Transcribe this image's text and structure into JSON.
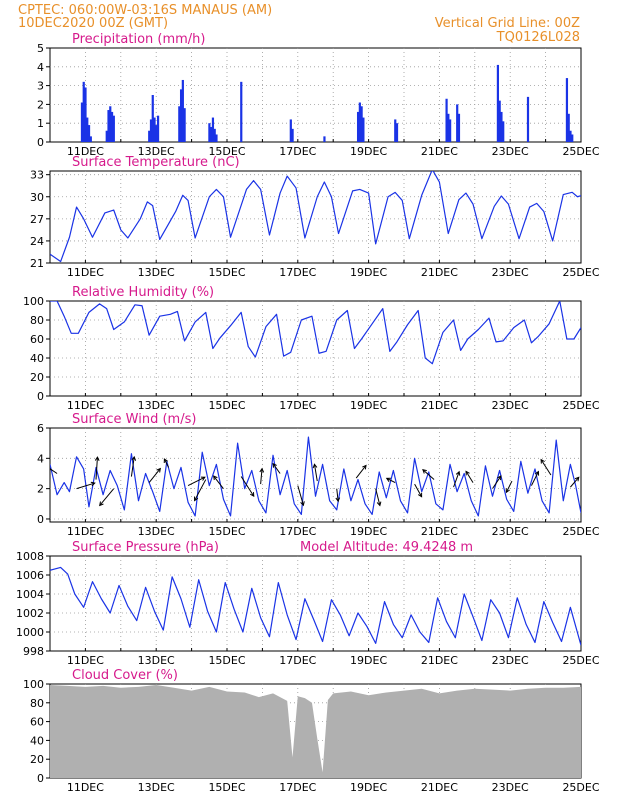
{
  "header": {
    "line1": "CPTEC:    060:00W-03:16S   MANAUS (AM)",
    "line2": "10DEC2020 00Z (GMT)",
    "grid_note": "Vertical Grid Line: 00Z",
    "code": "TQ0126L028"
  },
  "colors": {
    "header_text": "#e8902a",
    "panel_title": "#d61a8c",
    "series": "#1a33e6",
    "cloud": "#b0b0b0",
    "grid": "#9a9a9a",
    "arrow": "#000000"
  },
  "x_ticks": [
    "11DEC",
    "13DEC",
    "15DEC",
    "17DEC",
    "19DEC",
    "21DEC",
    "23DEC",
    "25DEC"
  ],
  "chart_data": [
    {
      "id": "precip",
      "type": "bar",
      "title": "Precipitation (mm/h)",
      "ylim": [
        0,
        5
      ],
      "yticks": [
        "0",
        "1",
        "2",
        "3",
        "4",
        "5"
      ],
      "x_days": [
        10.9,
        10.95,
        11.0,
        11.05,
        11.1,
        11.15,
        11.6,
        11.65,
        11.7,
        11.75,
        11.8,
        12.8,
        12.85,
        12.9,
        12.95,
        13.0,
        13.05,
        13.65,
        13.7,
        13.75,
        13.8,
        14.5,
        14.55,
        14.6,
        14.65,
        14.7,
        15.4,
        16.8,
        16.85,
        17.75,
        18.7,
        18.75,
        18.8,
        18.85,
        19.75,
        19.8,
        21.2,
        21.25,
        21.3,
        21.5,
        21.55,
        22.65,
        22.7,
        22.75,
        22.8,
        23.5,
        24.6,
        24.65,
        24.7,
        24.75
      ],
      "values": [
        2.1,
        3.2,
        2.9,
        1.3,
        0.9,
        0.3,
        0.6,
        1.7,
        1.9,
        1.6,
        1.4,
        0.6,
        1.2,
        2.5,
        1.3,
        0.9,
        1.4,
        1.9,
        2.8,
        3.3,
        1.8,
        1.0,
        0.8,
        1.3,
        0.7,
        0.4,
        3.2,
        1.2,
        0.7,
        0.3,
        1.6,
        2.1,
        1.9,
        1.3,
        1.2,
        1.0,
        2.3,
        1.5,
        1.2,
        2.0,
        1.5,
        4.1,
        2.2,
        1.6,
        1.1,
        2.4,
        3.4,
        1.5,
        0.6,
        0.4
      ]
    },
    {
      "id": "temp",
      "type": "line",
      "title": "Surface Temperature (nC)",
      "ylim": [
        21,
        33.5
      ],
      "yticks": [
        "21",
        "24",
        "27",
        "30",
        "33"
      ],
      "x_days": [
        10.0,
        10.3,
        10.55,
        10.75,
        10.95,
        11.2,
        11.55,
        11.8,
        12.0,
        12.2,
        12.55,
        12.75,
        12.9,
        13.1,
        13.55,
        13.75,
        13.9,
        14.1,
        14.5,
        14.7,
        14.9,
        15.1,
        15.55,
        15.75,
        15.95,
        16.2,
        16.5,
        16.7,
        16.95,
        17.2,
        17.55,
        17.75,
        17.95,
        18.15,
        18.55,
        18.75,
        19.0,
        19.2,
        19.55,
        19.75,
        19.95,
        20.15,
        20.5,
        20.8,
        21.0,
        21.25,
        21.55,
        21.75,
        21.95,
        22.2,
        22.55,
        22.75,
        22.95,
        23.25,
        23.55,
        23.75,
        23.95,
        24.2,
        24.5,
        24.75,
        24.9,
        25.1
      ],
      "values": [
        22.2,
        21.2,
        24.5,
        28.6,
        27.0,
        24.5,
        27.8,
        28.2,
        25.5,
        24.4,
        27.0,
        29.3,
        28.8,
        24.2,
        28.0,
        30.2,
        29.5,
        24.4,
        30.0,
        31.0,
        30.0,
        24.5,
        31.0,
        32.2,
        31.0,
        24.8,
        30.5,
        32.8,
        31.2,
        24.4,
        30.0,
        32.0,
        30.0,
        25.0,
        30.8,
        31.0,
        30.5,
        23.6,
        30.0,
        30.6,
        29.5,
        24.3,
        30.2,
        33.7,
        32.0,
        25.0,
        29.6,
        30.5,
        29.0,
        24.3,
        28.7,
        30.1,
        29.0,
        24.3,
        28.6,
        29.1,
        28.0,
        24.0,
        30.3,
        30.6,
        30.0,
        30.3
      ]
    },
    {
      "id": "rh",
      "type": "line",
      "title": "Relative Humidity (%)",
      "ylim": [
        0,
        100
      ],
      "yticks": [
        "0",
        "20",
        "40",
        "60",
        "80",
        "100"
      ],
      "x_days": [
        10.0,
        10.2,
        10.4,
        10.6,
        10.8,
        11.1,
        11.4,
        11.6,
        11.8,
        12.1,
        12.4,
        12.6,
        12.8,
        13.1,
        13.4,
        13.6,
        13.8,
        14.1,
        14.4,
        14.6,
        14.8,
        15.1,
        15.4,
        15.6,
        15.8,
        16.1,
        16.4,
        16.6,
        16.8,
        17.1,
        17.4,
        17.6,
        17.8,
        18.1,
        18.4,
        18.6,
        18.8,
        19.1,
        19.4,
        19.6,
        19.8,
        20.1,
        20.4,
        20.6,
        20.8,
        21.1,
        21.4,
        21.6,
        21.8,
        22.1,
        22.4,
        22.6,
        22.8,
        23.1,
        23.4,
        23.6,
        23.8,
        24.1,
        24.4,
        24.6,
        24.8,
        25.0
      ],
      "values": [
        100,
        100,
        84,
        66,
        66,
        88,
        97,
        92,
        70,
        78,
        96,
        95,
        64,
        84,
        86,
        89,
        58,
        78,
        88,
        50,
        61,
        74,
        88,
        52,
        41,
        73,
        86,
        42,
        46,
        80,
        84,
        45,
        47,
        80,
        90,
        50,
        60,
        76,
        92,
        47,
        57,
        75,
        90,
        40,
        34,
        67,
        80,
        48,
        60,
        70,
        82,
        57,
        58,
        72,
        80,
        56,
        63,
        76,
        100,
        60,
        60,
        72
      ]
    },
    {
      "id": "wind",
      "type": "line",
      "title": "Surface Wind (m/s)",
      "ylim": [
        -0.2,
        6
      ],
      "yticks": [
        "0",
        "2",
        "4",
        "6"
      ],
      "x_days": [
        10.0,
        10.2,
        10.4,
        10.55,
        10.75,
        10.95,
        11.1,
        11.3,
        11.5,
        11.7,
        11.9,
        12.1,
        12.3,
        12.5,
        12.7,
        12.9,
        13.1,
        13.3,
        13.5,
        13.7,
        13.9,
        14.1,
        14.3,
        14.5,
        14.7,
        14.9,
        15.1,
        15.3,
        15.5,
        15.7,
        15.9,
        16.1,
        16.3,
        16.5,
        16.7,
        16.9,
        17.1,
        17.3,
        17.5,
        17.7,
        17.9,
        18.1,
        18.3,
        18.5,
        18.7,
        18.9,
        19.1,
        19.3,
        19.5,
        19.7,
        19.9,
        20.1,
        20.3,
        20.5,
        20.7,
        20.9,
        21.1,
        21.3,
        21.5,
        21.7,
        21.9,
        22.1,
        22.3,
        22.5,
        22.7,
        22.9,
        23.1,
        23.3,
        23.5,
        23.7,
        23.9,
        24.1,
        24.3,
        24.5,
        24.7,
        24.85,
        25.0
      ],
      "values": [
        3.6,
        1.6,
        2.4,
        1.8,
        4.1,
        3.3,
        0.8,
        3.4,
        1.6,
        3.2,
        2.2,
        0.6,
        4.3,
        1.2,
        3.0,
        1.8,
        0.5,
        3.8,
        2.0,
        3.4,
        1.1,
        0.2,
        4.4,
        2.2,
        3.6,
        1.3,
        0.2,
        5.0,
        2.0,
        3.2,
        1.2,
        0.4,
        4.2,
        1.6,
        3.2,
        1.0,
        0.3,
        5.4,
        1.5,
        3.6,
        1.2,
        0.6,
        3.3,
        1.2,
        2.6,
        1.0,
        0.3,
        3.1,
        1.4,
        3.2,
        1.2,
        0.4,
        4.0,
        1.8,
        3.1,
        1.0,
        0.6,
        3.6,
        1.8,
        3.0,
        1.2,
        0.2,
        3.5,
        1.5,
        3.2,
        1.3,
        0.5,
        3.8,
        1.7,
        3.3,
        1.2,
        0.4,
        5.2,
        1.2,
        3.6,
        2.2,
        0.4
      ],
      "arrow_x": [
        10.2,
        10.75,
        11.3,
        11.8,
        12.3,
        12.8,
        13.35,
        13.9,
        14.4,
        14.9,
        15.4,
        15.95,
        16.5,
        17.0,
        17.55,
        18.1,
        18.65,
        19.2,
        19.75,
        20.3,
        20.85,
        21.4,
        21.95,
        22.5,
        23.05,
        23.6,
        24.15,
        24.7
      ],
      "arrow_y": [
        3.0,
        2.0,
        2.6,
        2.0,
        2.8,
        2.4,
        3.4,
        2.2,
        2.6,
        2.0,
        2.8,
        2.3,
        3.0,
        2.2,
        2.5,
        2.0,
        2.7,
        2.0,
        2.4,
        2.3,
        2.6,
        2.1,
        2.4,
        2.0,
        2.5,
        2.2,
        2.9,
        2.1
      ],
      "arrow_u": [
        -1.2,
        1.3,
        0.1,
        -1.0,
        0.2,
        0.8,
        -0.3,
        1.2,
        -0.8,
        -0.7,
        0.9,
        0.1,
        -0.5,
        0.4,
        -0.2,
        0.1,
        0.7,
        0.3,
        -0.6,
        0.5,
        -0.8,
        0.4,
        -0.5,
        0.6,
        -0.4,
        0.5,
        -0.7,
        0.6
      ],
      "arrow_v": [
        0.8,
        0.4,
        1.6,
        -1.2,
        1.4,
        1.0,
        0.6,
        0.6,
        -1.5,
        0.9,
        -1.4,
        1.1,
        0.7,
        -1.4,
        1.2,
        -0.9,
        0.9,
        -1.2,
        0.3,
        -0.9,
        0.7,
        1.1,
        0.8,
        0.9,
        -0.8,
        1.0,
        1.1,
        0.7
      ]
    },
    {
      "id": "pres",
      "type": "line",
      "title": "Surface Pressure (hPa)",
      "subtitle": "Model Altitude: 49.4248 m",
      "ylim": [
        998,
        1008
      ],
      "yticks": [
        "998",
        "1000",
        "1002",
        "1004",
        "1006",
        "1008"
      ],
      "x_days": [
        10.0,
        10.3,
        10.5,
        10.7,
        10.95,
        11.2,
        11.45,
        11.7,
        11.95,
        12.2,
        12.45,
        12.7,
        12.95,
        13.2,
        13.45,
        13.7,
        13.95,
        14.2,
        14.45,
        14.7,
        14.95,
        15.2,
        15.45,
        15.7,
        15.95,
        16.2,
        16.45,
        16.7,
        16.95,
        17.2,
        17.45,
        17.7,
        17.95,
        18.2,
        18.45,
        18.7,
        18.95,
        19.2,
        19.45,
        19.7,
        19.95,
        20.2,
        20.45,
        20.7,
        20.95,
        21.2,
        21.45,
        21.7,
        21.95,
        22.2,
        22.45,
        22.7,
        22.95,
        23.2,
        23.45,
        23.7,
        23.95,
        24.2,
        24.45,
        24.7,
        25.0
      ],
      "values": [
        1006.5,
        1006.8,
        1006.1,
        1004.0,
        1002.6,
        1005.3,
        1003.5,
        1002.0,
        1004.9,
        1002.7,
        1001.2,
        1004.7,
        1002.2,
        1000.2,
        1005.8,
        1003.5,
        1000.5,
        1005.5,
        1002.2,
        1000.0,
        1005.2,
        1002.4,
        1000.0,
        1004.6,
        1001.5,
        999.5,
        1005.2,
        1001.8,
        999.2,
        1003.5,
        1001.3,
        999.0,
        1003.4,
        1001.8,
        999.6,
        1002.0,
        1000.6,
        998.8,
        1003.2,
        1000.8,
        999.4,
        1001.8,
        1000.0,
        998.9,
        1003.6,
        1001.1,
        999.4,
        1004.0,
        1001.6,
        999.1,
        1003.4,
        1002.0,
        999.4,
        1003.6,
        1000.8,
        998.9,
        1003.2,
        1001.0,
        999.0,
        1002.6,
        998.6
      ]
    },
    {
      "id": "cloud",
      "type": "area",
      "title": "Cloud Cover (%)",
      "ylim": [
        0,
        100
      ],
      "yticks": [
        "0",
        "20",
        "40",
        "60",
        "80",
        "100"
      ],
      "x_days": [
        10.0,
        10.5,
        11.0,
        11.5,
        12.0,
        12.5,
        13.0,
        13.5,
        14.0,
        14.5,
        15.0,
        15.5,
        15.9,
        16.3,
        16.7,
        16.85,
        17.0,
        17.2,
        17.4,
        17.55,
        17.7,
        17.85,
        18.0,
        18.5,
        19.0,
        19.5,
        20.0,
        20.5,
        21.0,
        21.5,
        22.0,
        22.5,
        23.0,
        23.5,
        24.0,
        24.5,
        25.0
      ],
      "values": [
        99,
        98,
        97,
        98,
        96,
        97,
        99,
        96,
        93,
        97,
        92,
        91,
        86,
        90,
        82,
        22,
        87,
        85,
        80,
        42,
        6,
        83,
        90,
        92,
        88,
        91,
        93,
        95,
        90,
        93,
        95,
        94,
        93,
        95,
        96,
        96,
        97
      ]
    }
  ]
}
